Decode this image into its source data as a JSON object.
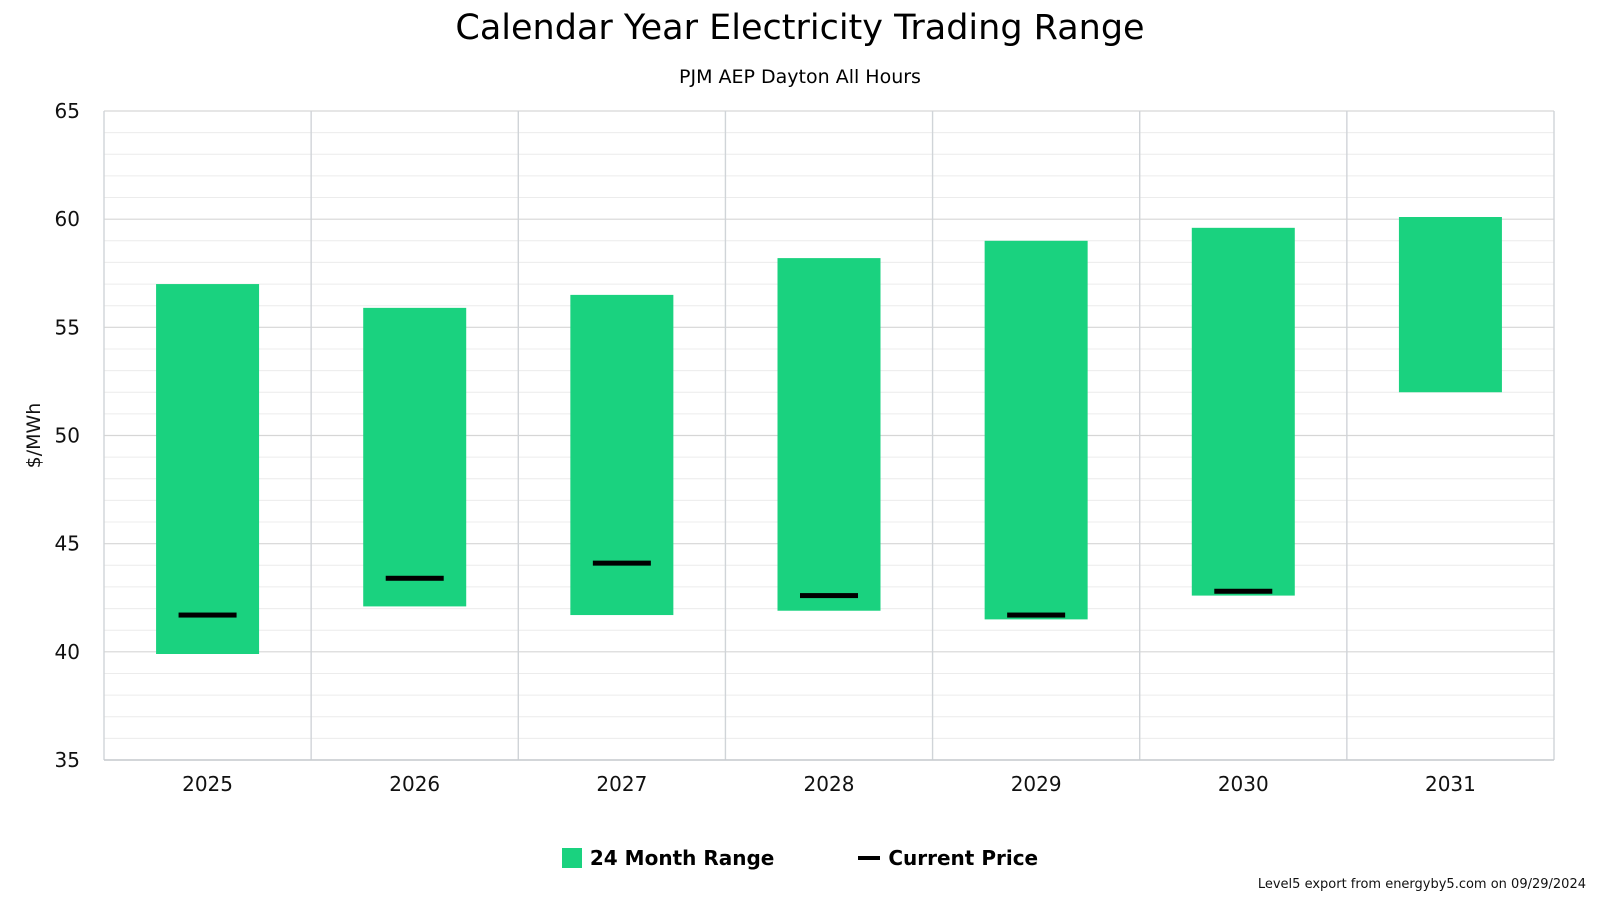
{
  "chart_data": {
    "type": "bar",
    "title": "Calendar Year Electricity Trading Range",
    "subtitle": "PJM AEP Dayton All Hours",
    "ylabel": "$/MWh",
    "xlabel": "",
    "ylim": [
      35,
      65
    ],
    "yticks": [
      35,
      40,
      45,
      50,
      55,
      60,
      65
    ],
    "categories": [
      "2025",
      "2026",
      "2027",
      "2028",
      "2029",
      "2030",
      "2031"
    ],
    "series": [
      {
        "name": "24 Month Range",
        "type": "range",
        "color": "#1ad27f",
        "low": [
          39.9,
          42.1,
          41.7,
          41.9,
          41.5,
          42.6,
          52.0
        ],
        "high": [
          57.0,
          55.9,
          56.5,
          58.2,
          59.0,
          59.6,
          60.1
        ]
      },
      {
        "name": "Current Price",
        "type": "marker",
        "color": "#000000",
        "values": [
          41.7,
          43.4,
          44.1,
          42.6,
          41.7,
          42.8,
          null
        ]
      }
    ],
    "grid": true,
    "legend_position": "bottom-center"
  },
  "footer": "Level5 export from energyby5.com on 09/29/2024"
}
